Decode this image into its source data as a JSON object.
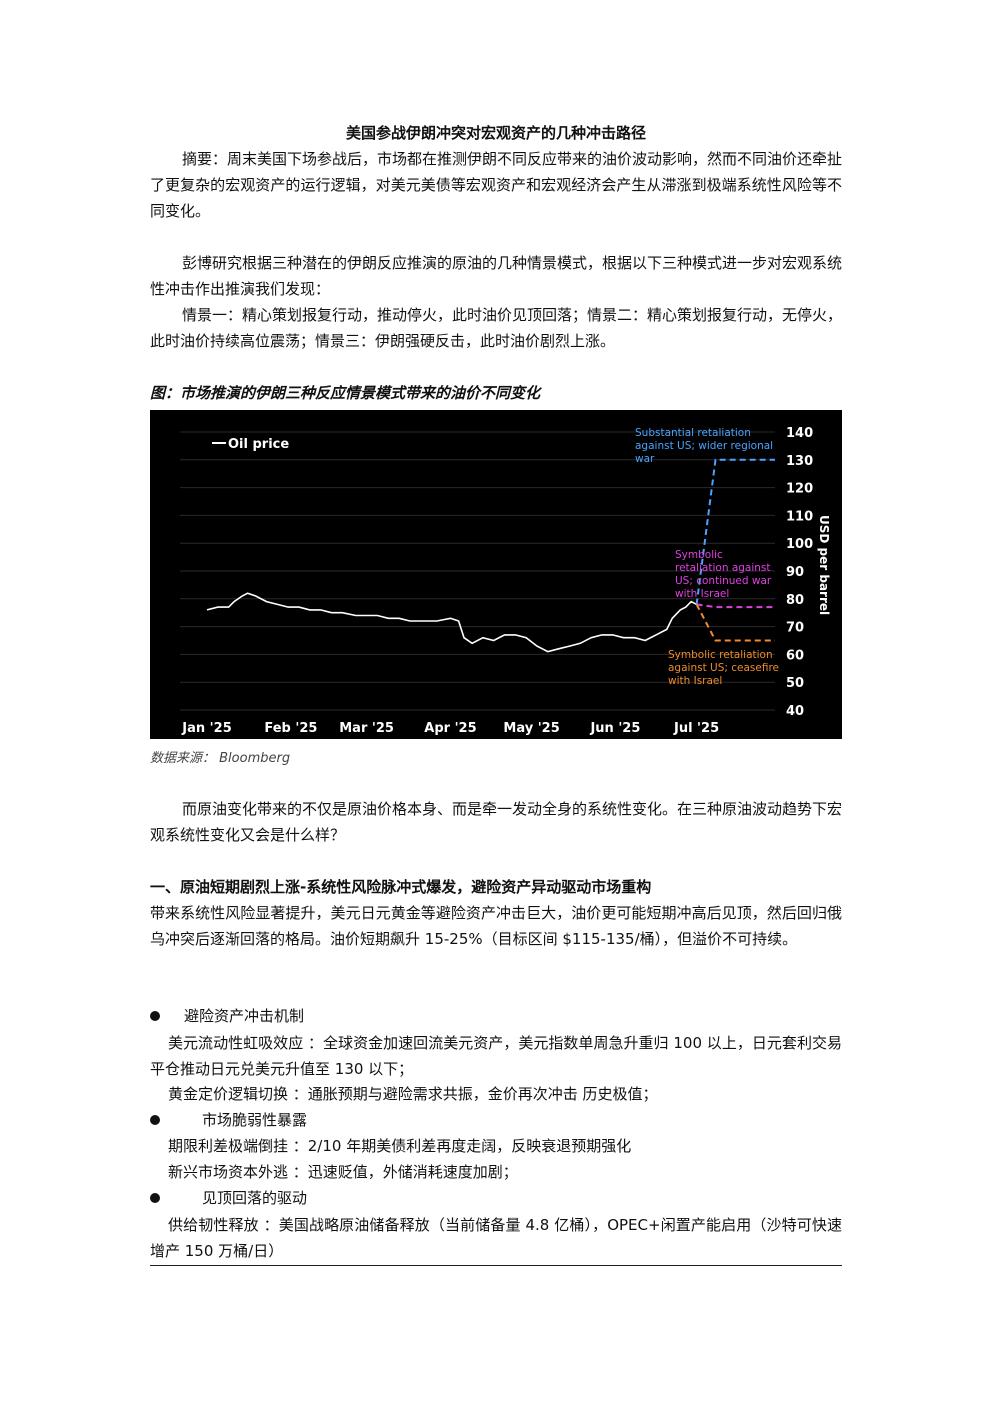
{
  "title": "美国参战伊朗冲突对宏观资产的几种冲击路径",
  "abstract": "摘要：周末美国下场参战后，市场都在推测伊朗不同反应带来的油价波动影响，然而不同油价还牵扯了更复杂的宏观资产的运行逻辑，对美元美债等宏观资产和宏观经济会产生从滞涨到极端系统性风险等不同变化。",
  "intro": "彭博研究根据三种潜在的伊朗反应推演的原油的几种情景模式，根据以下三种模式进一步对宏观系统性冲击作出推演我们发现：",
  "scenarios": "情景一：精心策划报复行动，推动停火，此时油价见顶回落；情景二：精心策划报复行动，无停火，此时油价持续高位震荡；情景三：伊朗强硬反击，此时油价剧烈上涨。",
  "figure_caption": "图：市场推演的伊朗三种反应情景模式带来的油价不同变化",
  "source_note": "数据来源： Bloomberg",
  "after_chart": "而原油变化带来的不仅是原油价格本身、而是牵一发动全身的系统性变化。在三种原油波动趋势下宏观系统性变化又会是什么样？",
  "section1": {
    "heading": "一、原油短期剧烈上涨-系统性风险脉冲式爆发，避险资产异动驱动市场重构",
    "body": "带来系统性风险显著提升，美元日元黄金等避险资产冲击巨大，油价更可能短期冲高后见顶，然后回归俄乌冲突后逐渐回落的格局。油价短期飙升 15-25%（目标区间 $115-135/桶），但溢价不可持续。",
    "bullets": [
      {
        "label": "避险资产冲击机制",
        "items": [
          "美元流动性虹吸效应 ：全球资金加速回流美元资产，美元指数单周急升重归 100 以上，日元套利交易平仓推动日元兑美元升值至 130 以下；",
          "黄金定价逻辑切换 ：通胀预期与避险需求共振，金价再次冲击 历史极值；"
        ]
      },
      {
        "label": "市场脆弱性暴露",
        "items": [
          "期限利差极端倒挂 ：2/10 年期美债利差再度走阔，反映衰退预期强化",
          "新兴市场资本外逃 ：迅速贬值，外储消耗速度加剧；"
        ]
      },
      {
        "label": "见顶回落的驱动",
        "items": [
          "供给韧性释放 ：美国战略原油储备释放（当前储备量 4.8 亿桶），OPEC+闲置产能启用（沙特可快速增产 150 万桶/日）"
        ]
      }
    ]
  },
  "chart_data": {
    "type": "line",
    "legend": "Oil price",
    "ylabel": "USD per barrel",
    "ylim": [
      40,
      140
    ],
    "yticks": [
      40,
      50,
      60,
      70,
      80,
      90,
      100,
      110,
      120,
      130,
      140
    ],
    "x_tick_labels": [
      "Jan '25",
      "Feb '25",
      "Mar '25",
      "Apr '25",
      "May '25",
      "Jun '25",
      "Jul '25"
    ],
    "x_tick_days": [
      0,
      31,
      59,
      90,
      120,
      151,
      181
    ],
    "xlim_days": [
      -10,
      210
    ],
    "series": [
      {
        "name": "Oil price",
        "color": "#ffffff",
        "dash": false,
        "points": [
          [
            0,
            76
          ],
          [
            4,
            77
          ],
          [
            8,
            77
          ],
          [
            10,
            79
          ],
          [
            13,
            81
          ],
          [
            15,
            82
          ],
          [
            18,
            81
          ],
          [
            22,
            79
          ],
          [
            26,
            78
          ],
          [
            30,
            77
          ],
          [
            34,
            77
          ],
          [
            38,
            76
          ],
          [
            42,
            76
          ],
          [
            46,
            75
          ],
          [
            50,
            75
          ],
          [
            55,
            74
          ],
          [
            59,
            74
          ],
          [
            63,
            74
          ],
          [
            67,
            73
          ],
          [
            71,
            73
          ],
          [
            75,
            72
          ],
          [
            80,
            72
          ],
          [
            85,
            72
          ],
          [
            90,
            73
          ],
          [
            93,
            72
          ],
          [
            95,
            66
          ],
          [
            98,
            64
          ],
          [
            102,
            66
          ],
          [
            106,
            65
          ],
          [
            110,
            67
          ],
          [
            114,
            67
          ],
          [
            118,
            66
          ],
          [
            122,
            63
          ],
          [
            126,
            61
          ],
          [
            130,
            62
          ],
          [
            134,
            63
          ],
          [
            138,
            64
          ],
          [
            142,
            66
          ],
          [
            146,
            67
          ],
          [
            150,
            67
          ],
          [
            154,
            66
          ],
          [
            158,
            66
          ],
          [
            162,
            65
          ],
          [
            166,
            67
          ],
          [
            170,
            69
          ],
          [
            172,
            73
          ],
          [
            175,
            76
          ],
          [
            177,
            77
          ],
          [
            179,
            79
          ],
          [
            181,
            78
          ]
        ]
      },
      {
        "name": "Substantial retaliation against US; wider regional war",
        "color": "#4aa3ff",
        "dash": true,
        "points": [
          [
            181,
            78
          ],
          [
            188,
            130
          ],
          [
            210,
            130
          ]
        ]
      },
      {
        "name": "Symbolic retaliation against US; continued war with Israel",
        "color": "#e040e0",
        "dash": true,
        "points": [
          [
            181,
            78
          ],
          [
            188,
            77
          ],
          [
            210,
            77
          ]
        ]
      },
      {
        "name": "Symbolic retaliation against US; ceasefire with Israel",
        "color": "#f08a2a",
        "dash": true,
        "points": [
          [
            181,
            78
          ],
          [
            188,
            65
          ],
          [
            210,
            65
          ]
        ]
      }
    ],
    "annotations": [
      {
        "series": 1,
        "lines": [
          "Substantial retaliation",
          "against US; wider regional",
          "war"
        ]
      },
      {
        "series": 2,
        "lines": [
          "Symbolic",
          "retaliation against",
          "US; continued war",
          "with Israel"
        ]
      },
      {
        "series": 3,
        "lines": [
          "Symbolic retaliation",
          "against US; ceasefire",
          "with Israel"
        ]
      }
    ]
  }
}
